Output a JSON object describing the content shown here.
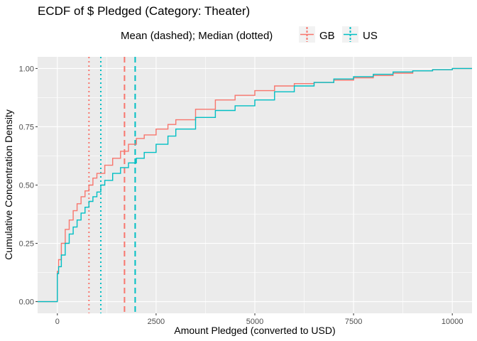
{
  "chart_data": {
    "type": "line",
    "title": "ECDF of $ Pledged (Category: Theater)",
    "xlabel": "Amount Pledged (converted to USD)",
    "ylabel": "Cumulative Concentration Density",
    "xlim": [
      -500,
      10500
    ],
    "ylim": [
      -0.05,
      1.05
    ],
    "x_ticks": [
      0,
      2500,
      5000,
      7500,
      10000
    ],
    "x_tick_labels": [
      "0",
      "2500",
      "5000",
      "7500",
      "10000"
    ],
    "y_ticks": [
      0,
      0.25,
      0.5,
      0.75,
      1.0
    ],
    "y_tick_labels": [
      "0.00",
      "0.25",
      "0.50",
      "0.75",
      "1.00"
    ],
    "grid": true,
    "legend": {
      "position": "top",
      "title": "Mean (dashed); Median (dotted)",
      "entries": [
        "GB",
        "US"
      ]
    },
    "series": [
      {
        "name": "GB",
        "color": "#F8766D",
        "mean": 1700,
        "median": 800,
        "x": [
          -500,
          0,
          0,
          30,
          100,
          200,
          300,
          400,
          500,
          600,
          700,
          800,
          900,
          1000,
          1200,
          1400,
          1600,
          1800,
          2000,
          2200,
          2500,
          2800,
          3000,
          3500,
          4000,
          4500,
          5000,
          5500,
          6000,
          6500,
          7000,
          7500,
          8000,
          8500,
          9000,
          9500,
          10000,
          10500
        ],
        "y": [
          0,
          0,
          0.13,
          0.18,
          0.25,
          0.31,
          0.35,
          0.39,
          0.42,
          0.45,
          0.475,
          0.5,
          0.53,
          0.55,
          0.585,
          0.615,
          0.645,
          0.675,
          0.7,
          0.715,
          0.74,
          0.76,
          0.78,
          0.825,
          0.865,
          0.885,
          0.905,
          0.925,
          0.935,
          0.94,
          0.95,
          0.96,
          0.97,
          0.98,
          0.99,
          0.995,
          1.0,
          1.0
        ]
      },
      {
        "name": "US",
        "color": "#00BFC4",
        "mean": 1970,
        "median": 1100,
        "x": [
          -500,
          0,
          0,
          30,
          100,
          200,
          300,
          400,
          500,
          600,
          700,
          800,
          900,
          1000,
          1100,
          1200,
          1400,
          1600,
          1800,
          2000,
          2200,
          2500,
          2800,
          3000,
          3500,
          4000,
          4500,
          5000,
          5500,
          6000,
          6500,
          7000,
          7500,
          8000,
          8500,
          9000,
          9500,
          10000,
          10500
        ],
        "y": [
          0,
          0,
          0.12,
          0.15,
          0.2,
          0.25,
          0.29,
          0.32,
          0.35,
          0.38,
          0.405,
          0.43,
          0.45,
          0.47,
          0.5,
          0.52,
          0.55,
          0.575,
          0.595,
          0.615,
          0.64,
          0.675,
          0.71,
          0.74,
          0.79,
          0.82,
          0.84,
          0.865,
          0.9,
          0.925,
          0.94,
          0.955,
          0.965,
          0.975,
          0.985,
          0.99,
          0.995,
          1.0,
          1.0
        ]
      }
    ]
  }
}
